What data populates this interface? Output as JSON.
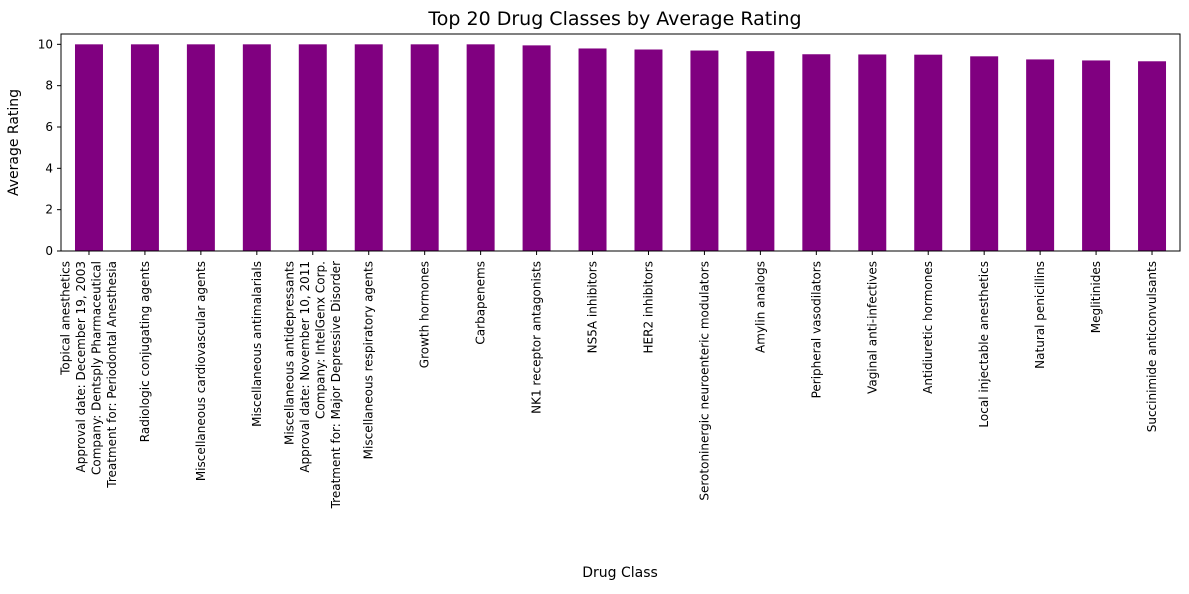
{
  "chart_data": {
    "type": "bar",
    "title": "Top 20 Drug Classes by Average Rating",
    "xlabel": "Drug Class",
    "ylabel": "Average Rating",
    "ylim": [
      0,
      10.5
    ],
    "yticks": [
      0,
      2,
      4,
      6,
      8,
      10
    ],
    "grid": false,
    "bar_color": "#800080",
    "categories": [
      [
        "Topical anesthetics",
        "Approval date:  December 19, 2003",
        "Company:  Dentsply Pharmaceutical",
        "Treatment for:  Periodontal Anesthesia"
      ],
      [
        "Radiologic conjugating agents"
      ],
      [
        "Miscellaneous cardiovascular agents"
      ],
      [
        "Miscellaneous antimalarials"
      ],
      [
        "Miscellaneous antidepressants",
        "Approval date:  November 10, 2011",
        "Company:  IntelGenx Corp.",
        "Treatment for:  Major Depressive Disorder"
      ],
      [
        "Miscellaneous respiratory agents"
      ],
      [
        "Growth hormones"
      ],
      [
        "Carbapenems"
      ],
      [
        "NK1 receptor antagonists"
      ],
      [
        "NS5A inhibitors"
      ],
      [
        "HER2 inhibitors"
      ],
      [
        "Serotoninergic neuroenteric modulators"
      ],
      [
        "Amylin analogs"
      ],
      [
        "Peripheral vasodilators"
      ],
      [
        "Vaginal anti-infectives"
      ],
      [
        "Antidiuretic hormones"
      ],
      [
        "Local injectable anesthetics"
      ],
      [
        "Natural penicillins"
      ],
      [
        "Meglitinides"
      ],
      [
        "Succinimide anticonvulsants"
      ]
    ],
    "values": [
      10.0,
      10.0,
      10.0,
      10.0,
      10.0,
      10.0,
      10.0,
      10.0,
      9.95,
      9.8,
      9.75,
      9.7,
      9.67,
      9.52,
      9.51,
      9.5,
      9.42,
      9.27,
      9.22,
      9.18
    ]
  }
}
